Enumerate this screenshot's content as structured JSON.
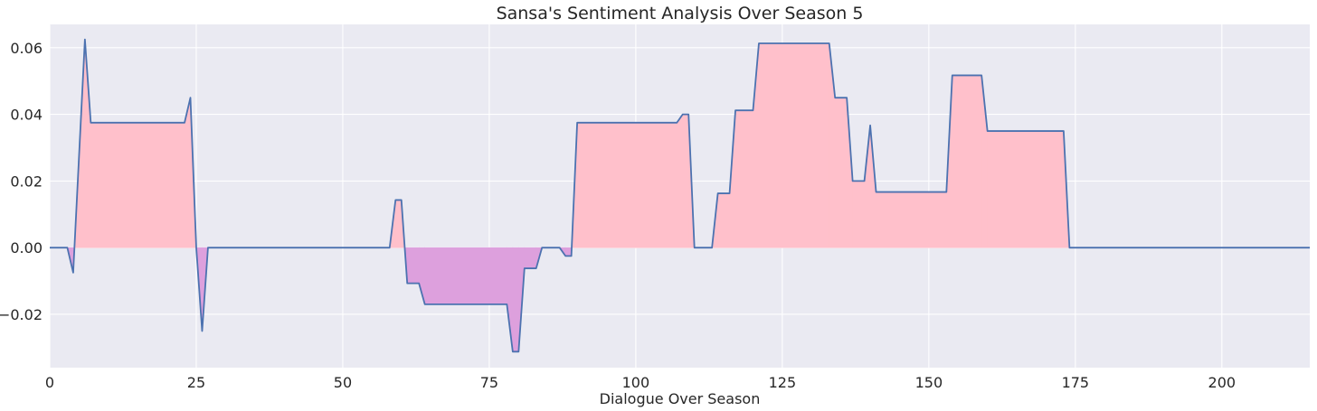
{
  "chart_data": {
    "type": "area",
    "title": "Sansa's Sentiment Analysis Over Season 5",
    "xlabel": "Dialogue Over Season",
    "ylabel": "",
    "xlim": [
      0,
      215
    ],
    "ylim": [
      -0.036,
      0.067
    ],
    "xticks": [
      0,
      25,
      50,
      75,
      100,
      125,
      150,
      175,
      200
    ],
    "yticks": [
      -0.02,
      0.0,
      0.02,
      0.04,
      0.06
    ],
    "xtick_labels": [
      "0",
      "25",
      "50",
      "75",
      "100",
      "125",
      "150",
      "175",
      "200"
    ],
    "ytick_labels": [
      "−0.02",
      "0.00",
      "0.02",
      "0.04",
      "0.06"
    ],
    "grid": true,
    "colors": {
      "background": "#eaeaf2",
      "grid": "#ffffff",
      "line": "#4c72b0",
      "positive_fill": "#ffc0cb",
      "negative_fill": "#dda0dd"
    },
    "series": [
      {
        "x": [
          0,
          3,
          4,
          6,
          7,
          23,
          24,
          25,
          26,
          27,
          58,
          59,
          60,
          61,
          63,
          64,
          78,
          79,
          80,
          81,
          83,
          84,
          87,
          88,
          89,
          90,
          107,
          108,
          109,
          110,
          113,
          114,
          116,
          117,
          120,
          121,
          133,
          134,
          136,
          137,
          139,
          140,
          141,
          153,
          154,
          159,
          160,
          173,
          174,
          215
        ],
        "y": [
          0,
          0,
          -0.0075,
          0.0625,
          0.0375,
          0.0375,
          0.045,
          0,
          -0.025,
          0,
          0,
          0.0143,
          0.0143,
          -0.0107,
          -0.0107,
          -0.017,
          -0.017,
          -0.0312,
          -0.0312,
          -0.0062,
          -0.0062,
          0,
          0,
          -0.0025,
          -0.0025,
          0.0375,
          0.0375,
          0.04,
          0.04,
          0,
          0,
          0.0163,
          0.0163,
          0.0412,
          0.0412,
          0.0613,
          0.0613,
          0.045,
          0.045,
          0.02,
          0.02,
          0.0367,
          0.0167,
          0.0167,
          0.0517,
          0.0517,
          0.035,
          0.035,
          0,
          0
        ]
      }
    ]
  }
}
